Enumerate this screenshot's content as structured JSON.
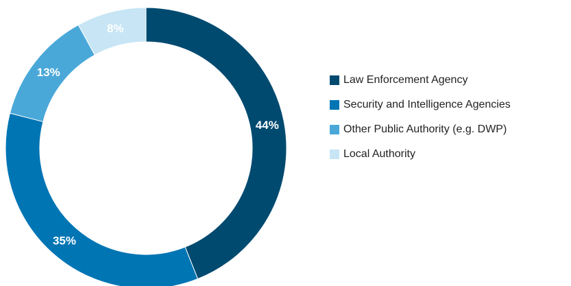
{
  "chart_data": {
    "type": "pie",
    "subtype": "donut",
    "title": "",
    "categories": [
      "Law Enforcement Agency",
      "Security and Intelligence Agencies",
      "Other Public Authority (e.g. DWP)",
      "Local Authority"
    ],
    "values": [
      44,
      35,
      13,
      8
    ],
    "value_labels": [
      "44%",
      "35%",
      "13%",
      "8%"
    ],
    "colors": [
      "#004a70",
      "#0075b4",
      "#4aa8d9",
      "#c7e5f4"
    ],
    "legend_position": "right"
  }
}
